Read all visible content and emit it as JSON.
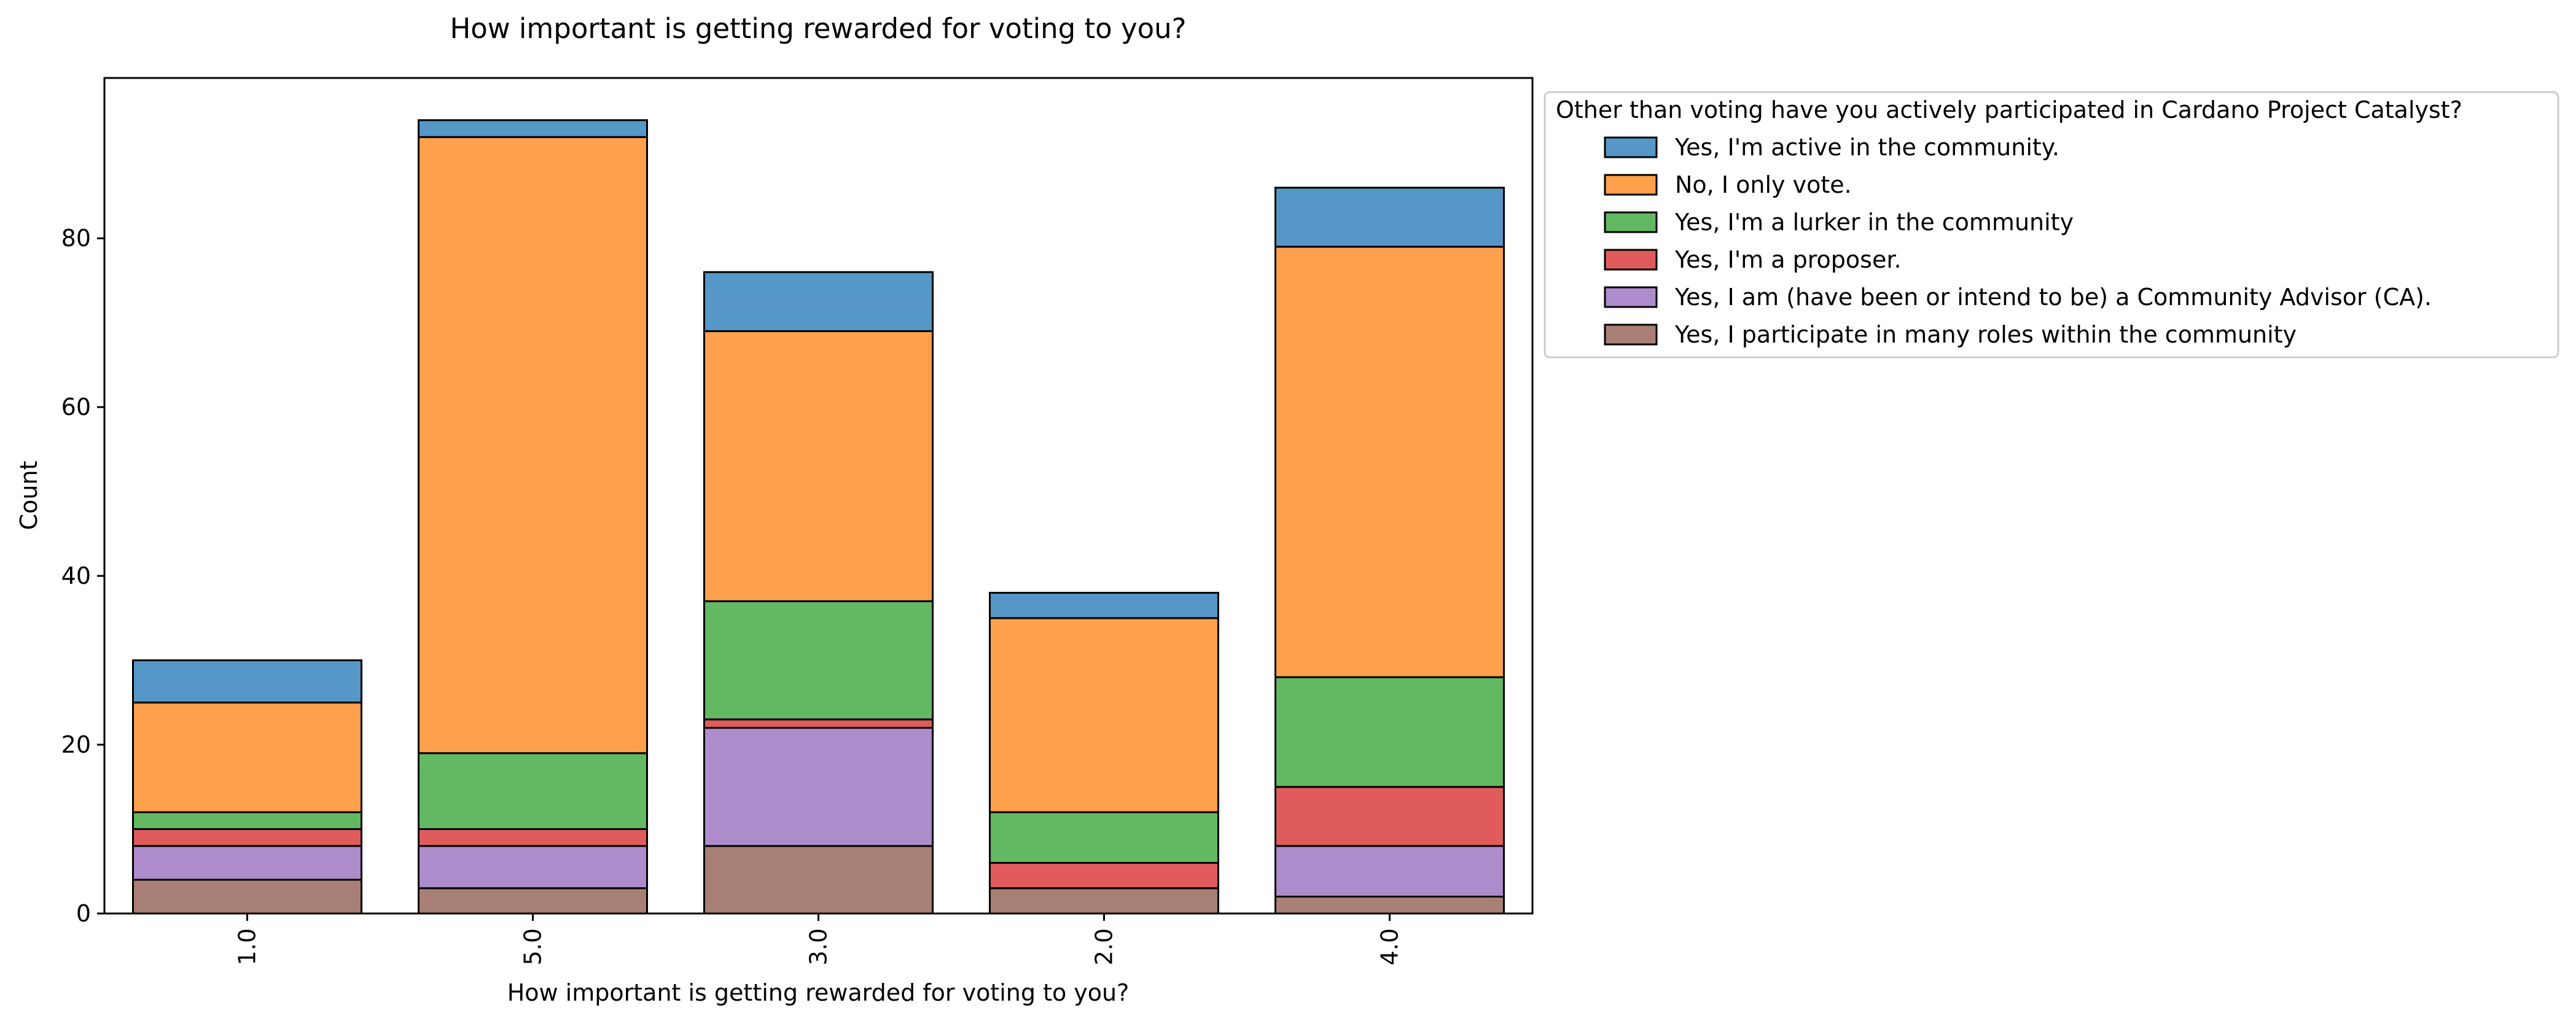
{
  "chart_data": {
    "type": "bar",
    "stacked": true,
    "title": "How important is getting rewarded for voting to you?",
    "xlabel": "How important is getting rewarded for voting to you?",
    "ylabel": "Count",
    "ylim": [
      0,
      99
    ],
    "yticks": [
      0,
      20,
      40,
      60,
      80
    ],
    "categories": [
      "1.0",
      "5.0",
      "3.0",
      "2.0",
      "4.0"
    ],
    "legend": {
      "title": "Other than voting have you actively participated in Cardano Project Catalyst?",
      "placement": "outside-top-right"
    },
    "series": [
      {
        "name": "Yes, I participate in many roles within the community",
        "color": "#a87f74",
        "values": [
          4,
          3,
          8,
          3,
          2
        ]
      },
      {
        "name": "Yes, I am (have been or intend to be) a Community Advisor (CA).",
        "color": "#ae8ccb",
        "values": [
          4,
          5,
          14,
          0,
          6
        ]
      },
      {
        "name": "Yes, I'm a proposer.",
        "color": "#e05c5c",
        "values": [
          2,
          2,
          1,
          3,
          7
        ]
      },
      {
        "name": "Yes, I'm a lurker in the community",
        "color": "#63b862",
        "values": [
          2,
          9,
          14,
          6,
          13
        ]
      },
      {
        "name": "No, I only vote.",
        "color": "#ffa04c",
        "values": [
          13,
          73,
          32,
          23,
          51
        ]
      },
      {
        "name": "Yes, I'm active in the community.",
        "color": "#5597c7",
        "values": [
          5,
          2,
          7,
          3,
          7
        ]
      }
    ],
    "legend_order": [
      5,
      4,
      3,
      2,
      1,
      0
    ],
    "grid": false
  }
}
